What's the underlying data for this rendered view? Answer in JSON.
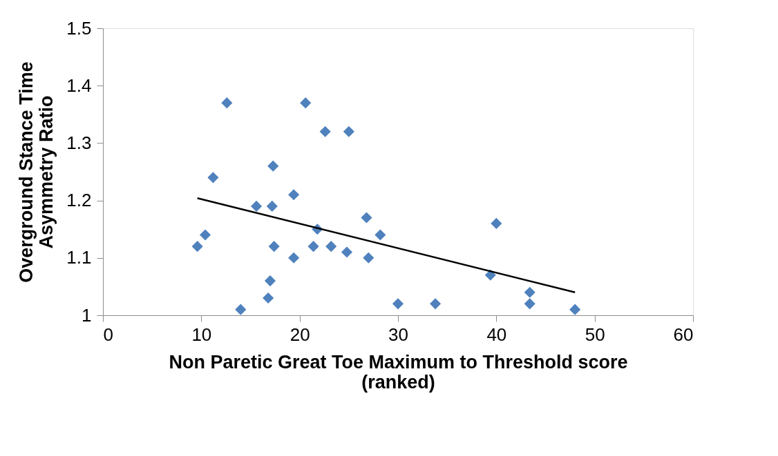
{
  "chart_data": {
    "type": "scatter",
    "xlabel": "Non Paretic Great Toe Maximum to Threshold score\n(ranked)",
    "ylabel": "Overground Stance Time\nAsymmetry Ratio",
    "xlim": [
      0,
      60
    ],
    "xticks": [
      0,
      10,
      20,
      30,
      40,
      50,
      60
    ],
    "ylim": [
      1,
      1.5
    ],
    "yticks": [
      1,
      1.1,
      1.2,
      1.3,
      1.4,
      1.5
    ],
    "grid": false,
    "series": [
      {
        "marker": "diamond",
        "color": "#4f81bd",
        "x": [
          9.6,
          10.4,
          11.2,
          12.6,
          14.0,
          15.6,
          16.8,
          17.0,
          17.2,
          17.3,
          17.4,
          19.4,
          19.4,
          20.6,
          21.4,
          21.8,
          22.6,
          23.2,
          24.8,
          25.0,
          26.8,
          27.0,
          28.2,
          30.0,
          33.8,
          39.4,
          40.0,
          43.4,
          43.4,
          48.0
        ],
        "values": [
          1.12,
          1.14,
          1.24,
          1.37,
          1.01,
          1.19,
          1.03,
          1.06,
          1.19,
          1.26,
          1.12,
          1.1,
          1.21,
          1.37,
          1.12,
          1.15,
          1.32,
          1.12,
          1.11,
          1.32,
          1.17,
          1.1,
          1.14,
          1.02,
          1.02,
          1.07,
          1.16,
          1.04,
          1.02,
          1.01
        ]
      },
      {
        "type": "line",
        "color": "#000000",
        "x": [
          9.6,
          48.0
        ],
        "values": [
          1.204,
          1.04
        ]
      }
    ]
  }
}
